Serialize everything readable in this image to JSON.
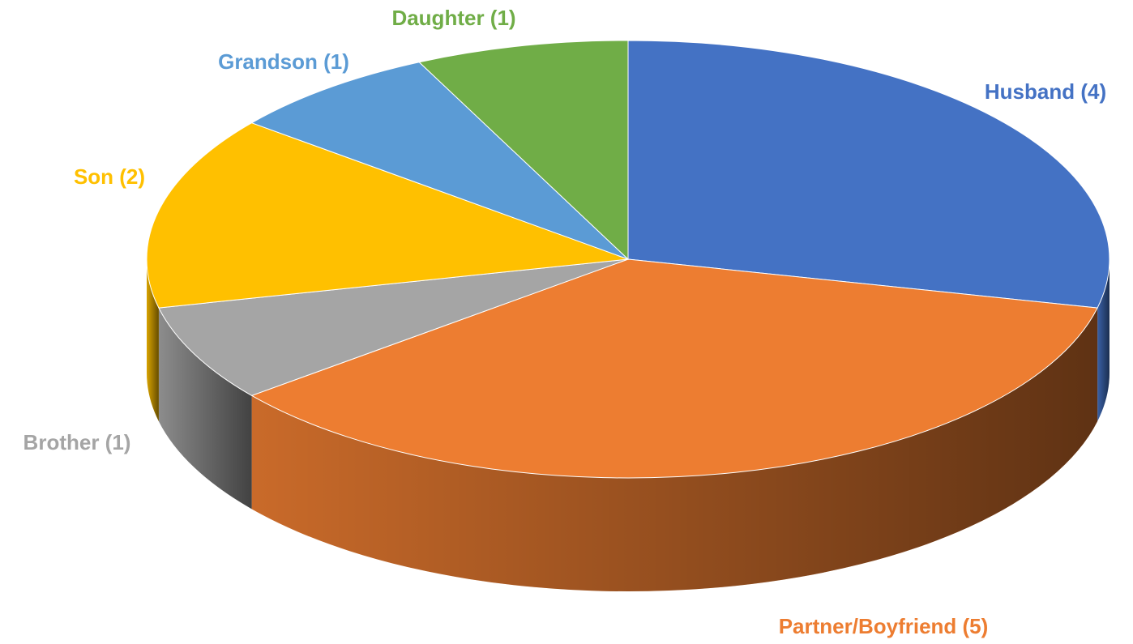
{
  "chart_data": {
    "type": "pie",
    "categories": [
      "Husband (4)",
      "Partner/Boyfriend (5)",
      "Brother (1)",
      "Son (2)",
      "Grandson (1)",
      "Daughter (1)"
    ],
    "values": [
      4,
      5,
      1,
      2,
      1,
      1
    ],
    "colors": [
      "#4472c4",
      "#ed7d31",
      "#a5a5a5",
      "#ffc000",
      "#5b9bd5",
      "#70ad47"
    ]
  }
}
